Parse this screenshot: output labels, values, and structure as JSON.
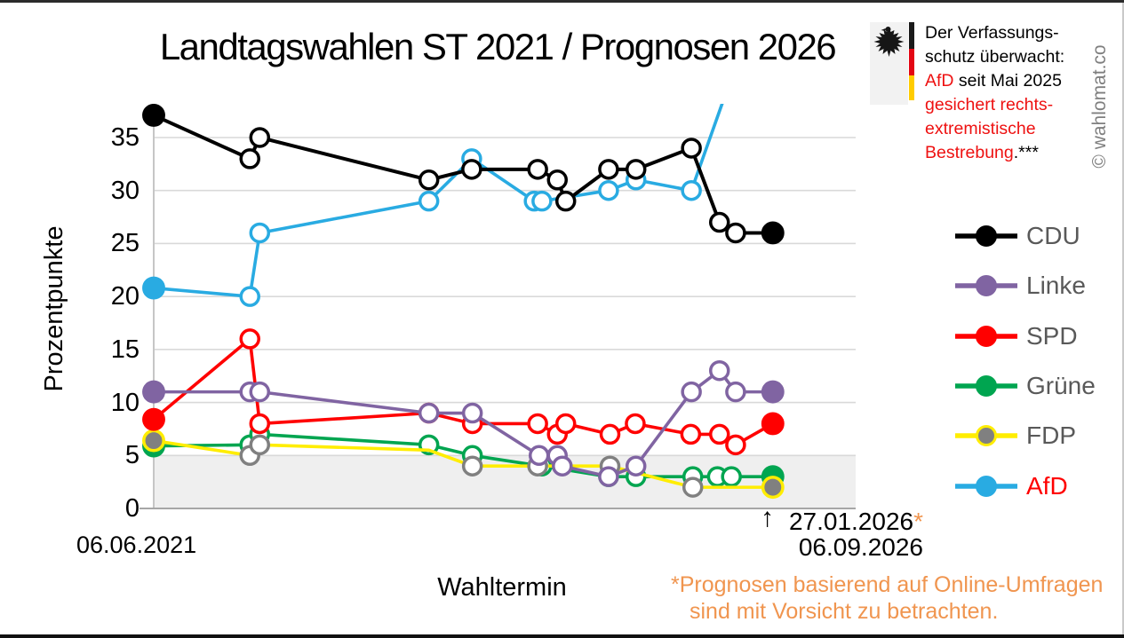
{
  "title": "Landtagswahlen ST 2021 / Prognosen 2026",
  "watermark": "© wahlomat.co",
  "annotation": {
    "line1": "Der Verfassungs-",
    "line2": "schutz überwacht:",
    "line3_red": "AfD",
    "line3_black": " seit Mai 2025",
    "line4_red": "gesichert rechts-",
    "line5_red": "extremistische",
    "line6_red": "Bestrebung",
    "line6_black": ".***",
    "flag_colors": [
      "#1a1a1a",
      "#E30613",
      "#FFCC00"
    ],
    "eagle_icon": "bundesadler-icon"
  },
  "axis_annotation": {
    "arrow": "↑",
    "poll_date": "27.01.2026",
    "poll_date_star": "*",
    "election_date": "06.09.2026"
  },
  "footnote": {
    "line1": "*Prognosen basierend auf Online-Umfragen",
    "line2": "sind mit Vorsicht zu betrachten.",
    "color": "#F0954F"
  },
  "chart_data": {
    "type": "line",
    "title": "Landtagswahlen ST 2021 / Prognosen 2026",
    "xlabel": "Wahltermin",
    "ylabel": "Prozentpunkte",
    "ylim": [
      0,
      38
    ],
    "yticks": [
      0,
      5,
      10,
      15,
      20,
      25,
      30,
      35
    ],
    "grid": true,
    "grid_color": "#D9D9D9",
    "threshold_band": {
      "from": 0,
      "to": 5,
      "color": "#EFEFEF"
    },
    "x_axis": {
      "start_label": "06.06.2021",
      "end_label": "06.09.2026",
      "latest_poll_label": "27.01.2026",
      "note": "x positions are fractions of the axis from 06.06.2021 (0) to 06.09.2026 (1); first points = election result 2021 (filled), last points = prognosis 27.01.2026 (filled)"
    },
    "series": [
      {
        "key": "gruene",
        "label": "Grüne",
        "color": "#00A550",
        "marker_fill": "#00A550",
        "line_width": 3.6,
        "points": [
          [
            0,
            5.9,
            "f"
          ],
          [
            0.137,
            6,
            "o"
          ],
          [
            0.151,
            7,
            "o"
          ],
          [
            0.392,
            6,
            "o"
          ],
          [
            0.454,
            5,
            "o"
          ],
          [
            0.553,
            4,
            "o"
          ],
          [
            0.648,
            3,
            "o"
          ],
          [
            0.687,
            3,
            "o"
          ],
          [
            0.768,
            3,
            "o"
          ],
          [
            0.803,
            3,
            "o"
          ],
          [
            0.823,
            3,
            "o"
          ],
          [
            0.882,
            3,
            "f"
          ]
        ]
      },
      {
        "key": "fdp",
        "label": "FDP",
        "color": "#FFED00",
        "marker_fill": "#808080",
        "marker_stroke": "#808080",
        "filled_ring": "#FFED00",
        "line_width": 3.6,
        "points": [
          [
            0,
            6.4,
            "f"
          ],
          [
            0.137,
            5,
            "o"
          ],
          [
            0.151,
            6,
            "o"
          ],
          [
            0.392,
            5.5,
            "n"
          ],
          [
            0.454,
            4,
            "o"
          ],
          [
            0.547,
            4,
            "o"
          ],
          [
            0.65,
            4,
            "o"
          ],
          [
            0.768,
            2,
            "o"
          ],
          [
            0.882,
            2,
            "f"
          ]
        ]
      },
      {
        "key": "spd",
        "label": "SPD",
        "color": "#FF0000",
        "marker_fill": "#FF0000",
        "line_width": 3.6,
        "points": [
          [
            0,
            8.4,
            "f"
          ],
          [
            0.137,
            16,
            "o"
          ],
          [
            0.151,
            8,
            "o"
          ],
          [
            0.392,
            9,
            "o"
          ],
          [
            0.454,
            8,
            "o"
          ],
          [
            0.547,
            8,
            "o"
          ],
          [
            0.575,
            7,
            "o"
          ],
          [
            0.587,
            8,
            "o"
          ],
          [
            0.65,
            7,
            "o"
          ],
          [
            0.686,
            8,
            "o"
          ],
          [
            0.765,
            7,
            "o"
          ],
          [
            0.806,
            7,
            "o"
          ],
          [
            0.829,
            6,
            "o"
          ],
          [
            0.882,
            8,
            "f"
          ]
        ]
      },
      {
        "key": "linke",
        "label": "Linke",
        "color": "#8064A2",
        "marker_fill": "#8064A2",
        "line_width": 3.6,
        "points": [
          [
            0,
            11,
            "f"
          ],
          [
            0.137,
            11,
            "o"
          ],
          [
            0.151,
            11,
            "o"
          ],
          [
            0.392,
            9,
            "o"
          ],
          [
            0.454,
            9,
            "o"
          ],
          [
            0.549,
            5,
            "o"
          ],
          [
            0.575,
            5,
            "o"
          ],
          [
            0.582,
            4,
            "o"
          ],
          [
            0.648,
            3,
            "o"
          ],
          [
            0.687,
            4,
            "o"
          ],
          [
            0.766,
            11,
            "o"
          ],
          [
            0.806,
            13,
            "o"
          ],
          [
            0.829,
            11,
            "o"
          ],
          [
            0.882,
            11,
            "f"
          ]
        ]
      },
      {
        "key": "afd",
        "label": "AfD",
        "color": "#29ABE2",
        "marker_fill": "#29ABE2",
        "line_width": 3.6,
        "clipped_note": "letzte Prognose über Skalenende hinaus (Linie am oberen Rand abgeschnitten)",
        "points": [
          [
            0,
            20.8,
            "f"
          ],
          [
            0.137,
            20,
            "o"
          ],
          [
            0.151,
            26,
            "o"
          ],
          [
            0.392,
            29,
            "o"
          ],
          [
            0.453,
            33,
            "o"
          ],
          [
            0.542,
            29,
            "o"
          ],
          [
            0.553,
            29,
            "o"
          ],
          [
            0.648,
            30,
            "o"
          ],
          [
            0.687,
            31,
            "o"
          ],
          [
            0.766,
            30,
            "o"
          ],
          [
            0.813,
            38.8,
            "n"
          ]
        ]
      },
      {
        "key": "cdu",
        "label": "CDU",
        "color": "#000000",
        "marker_fill": "#000000",
        "line_width": 4,
        "points": [
          [
            0,
            37.1,
            "f"
          ],
          [
            0.137,
            33,
            "o"
          ],
          [
            0.151,
            35,
            "o"
          ],
          [
            0.392,
            31,
            "o"
          ],
          [
            0.453,
            32,
            "o"
          ],
          [
            0.547,
            32,
            "o"
          ],
          [
            0.575,
            31,
            "o"
          ],
          [
            0.587,
            29,
            "o"
          ],
          [
            0.648,
            32,
            "o"
          ],
          [
            0.687,
            32,
            "o"
          ],
          [
            0.766,
            34,
            "o"
          ],
          [
            0.806,
            27,
            "o"
          ],
          [
            0.829,
            26,
            "o"
          ],
          [
            0.882,
            26,
            "f"
          ]
        ]
      }
    ],
    "legend": [
      {
        "series": "cdu",
        "label": "CDU",
        "label_color": "#595959"
      },
      {
        "series": "linke",
        "label": "Linke",
        "label_color": "#595959"
      },
      {
        "series": "spd",
        "label": "SPD",
        "label_color": "#595959"
      },
      {
        "series": "gruene",
        "label": "Grüne",
        "label_color": "#595959"
      },
      {
        "series": "fdp",
        "label": "FDP",
        "label_color": "#595959"
      },
      {
        "series": "afd",
        "label": "AfD",
        "label_color": "#FF0000"
      }
    ],
    "legend_position": "right"
  }
}
